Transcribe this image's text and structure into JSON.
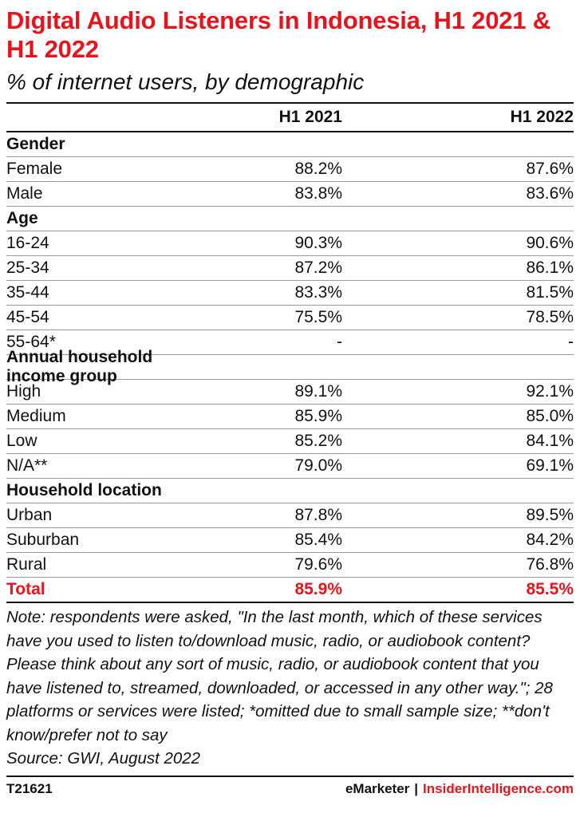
{
  "title": "Digital Audio Listeners in Indonesia, H1 2021 & H1 2022",
  "subtitle": "% of internet users, by demographic",
  "columns": [
    "",
    "H1 2021",
    "H1 2022"
  ],
  "chart_data": {
    "type": "table",
    "title": "Digital Audio Listeners in Indonesia, H1 2021 & H1 2022",
    "subtitle": "% of internet users, by demographic",
    "columns": [
      "H1 2021",
      "H1 2022"
    ],
    "rows": [
      {
        "label": "Gender",
        "group": true
      },
      {
        "label": "Female",
        "values": [
          "88.2%",
          "87.6%"
        ]
      },
      {
        "label": "Male",
        "values": [
          "83.8%",
          "83.6%"
        ]
      },
      {
        "label": "Age",
        "group": true
      },
      {
        "label": "16-24",
        "values": [
          "90.3%",
          "90.6%"
        ]
      },
      {
        "label": "25-34",
        "values": [
          "87.2%",
          "86.1%"
        ]
      },
      {
        "label": "35-44",
        "values": [
          "83.3%",
          "81.5%"
        ]
      },
      {
        "label": "45-54",
        "values": [
          "75.5%",
          "78.5%"
        ]
      },
      {
        "label": "55-64*",
        "values": [
          "-",
          "-"
        ]
      },
      {
        "label": "Annual household income group",
        "group": true
      },
      {
        "label": "High",
        "values": [
          "89.1%",
          "92.1%"
        ]
      },
      {
        "label": "Medium",
        "values": [
          "85.9%",
          "85.0%"
        ]
      },
      {
        "label": "Low",
        "values": [
          "85.2%",
          "84.1%"
        ]
      },
      {
        "label": "N/A**",
        "values": [
          "79.0%",
          "69.1%"
        ]
      },
      {
        "label": "Household location",
        "group": true
      },
      {
        "label": "Urban",
        "values": [
          "87.8%",
          "89.5%"
        ]
      },
      {
        "label": "Suburban",
        "values": [
          "85.4%",
          "84.2%"
        ]
      },
      {
        "label": "Rural",
        "values": [
          "79.6%",
          "76.8%"
        ]
      },
      {
        "label": "Total",
        "values": [
          "85.9%",
          "85.5%"
        ],
        "total": true
      }
    ]
  },
  "note": "Note: respondents were asked, \"In the last month, which of these services have you used to listen to/download music, radio, or audiobook content? Please think about any sort of music, radio, or audiobook content that you have listened to, streamed, downloaded, or accessed in any other way.\"; 28 platforms or services were listed; *omitted due to small sample size; **don't know/prefer not to say",
  "source": "Source: GWI, August 2022",
  "footer": {
    "chart_id": "T21621",
    "brand_left": "eMarketer",
    "separator": "|",
    "brand_right": "InsiderIntelligence.com"
  },
  "colors": {
    "accent": "#e8141b",
    "text": "#111111",
    "rule": "#9a9a9a"
  }
}
